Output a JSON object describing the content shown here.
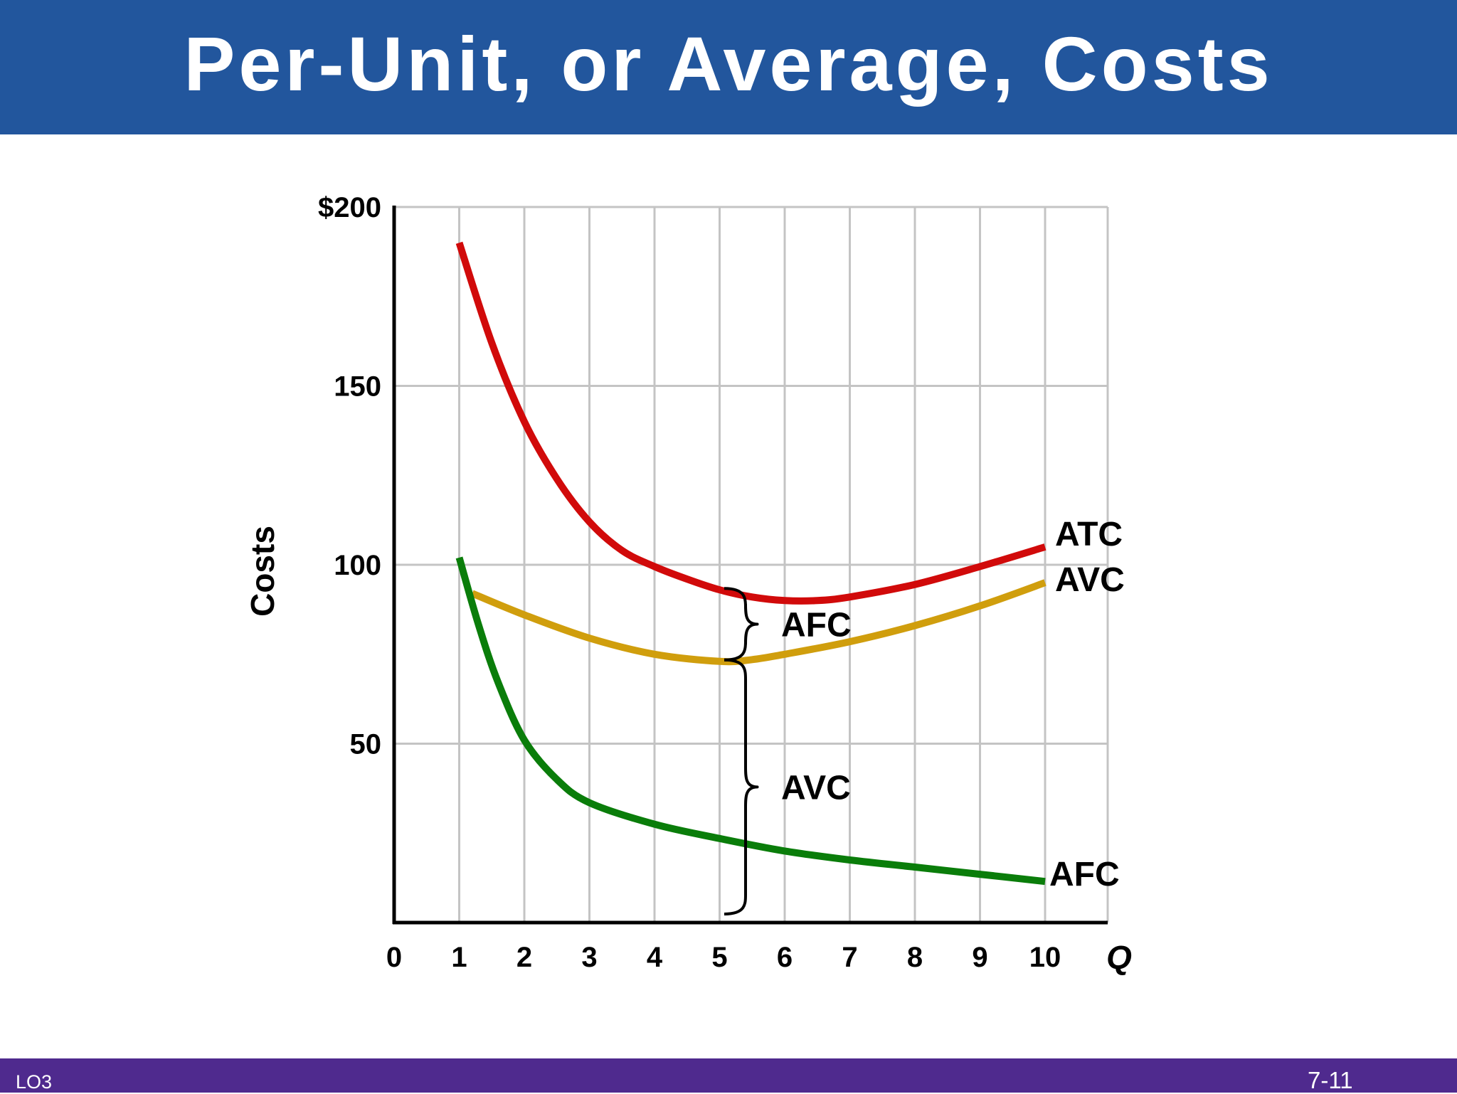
{
  "header": {
    "title": "Per-Unit, or Average, Costs"
  },
  "footer": {
    "left_label": "LO3",
    "page_number": "7-11"
  },
  "colors": {
    "title_bar": "#22569d",
    "footer_bar": "#4f2a8e",
    "atc": "#d10a0a",
    "avc": "#d09e0d",
    "afc": "#0a7d0a",
    "grid": "#c4c4c4",
    "axis": "#000000"
  },
  "chart_data": {
    "type": "line",
    "title": "",
    "xlabel": "Q",
    "ylabel": "Costs",
    "xlim": [
      0,
      11
    ],
    "ylim": [
      0,
      200
    ],
    "x_ticks": [
      "0",
      "1",
      "2",
      "3",
      "4",
      "5",
      "6",
      "7",
      "8",
      "9",
      "10"
    ],
    "y_ticks": [
      {
        "value": 50,
        "label": "50"
      },
      {
        "value": 100,
        "label": "100"
      },
      {
        "value": 150,
        "label": "150"
      },
      {
        "value": 200,
        "label": "$200"
      }
    ],
    "grid": true,
    "series": [
      {
        "name": "ATC",
        "color": "#d10a0a",
        "points": [
          [
            1,
            190
          ],
          [
            1.5,
            162
          ],
          [
            2,
            140
          ],
          [
            2.5,
            124
          ],
          [
            3,
            112
          ],
          [
            3.5,
            104
          ],
          [
            4,
            99.5
          ],
          [
            4.5,
            96
          ],
          [
            5,
            93
          ],
          [
            5.5,
            91
          ],
          [
            6,
            90
          ],
          [
            6.5,
            90
          ],
          [
            7,
            91
          ],
          [
            8,
            94.5
          ],
          [
            9,
            99.5
          ],
          [
            10,
            105
          ]
        ]
      },
      {
        "name": "AVC",
        "color": "#d09e0d",
        "points": [
          [
            1.2,
            92
          ],
          [
            2,
            86
          ],
          [
            3,
            79.5
          ],
          [
            4,
            75
          ],
          [
            5,
            73
          ],
          [
            5.5,
            73.5
          ],
          [
            6,
            75
          ],
          [
            7,
            78.5
          ],
          [
            8,
            83
          ],
          [
            9,
            88.5
          ],
          [
            10,
            95
          ]
        ]
      },
      {
        "name": "AFC",
        "color": "#0a7d0a",
        "points": [
          [
            1,
            102
          ],
          [
            1.3,
            83
          ],
          [
            1.6,
            67
          ],
          [
            2,
            51
          ],
          [
            2.5,
            40
          ],
          [
            3,
            33.5
          ],
          [
            4,
            27.5
          ],
          [
            5,
            23.5
          ],
          [
            6,
            20
          ],
          [
            7,
            17.5
          ],
          [
            8,
            15.5
          ],
          [
            9,
            13.5
          ],
          [
            10,
            11.5
          ]
        ]
      }
    ],
    "annotations": [
      {
        "label": "AFC",
        "from": 73,
        "to": 93,
        "x": 5.4
      },
      {
        "label": "AVC",
        "from": 2,
        "to": 73,
        "x": 5.4
      }
    ]
  }
}
